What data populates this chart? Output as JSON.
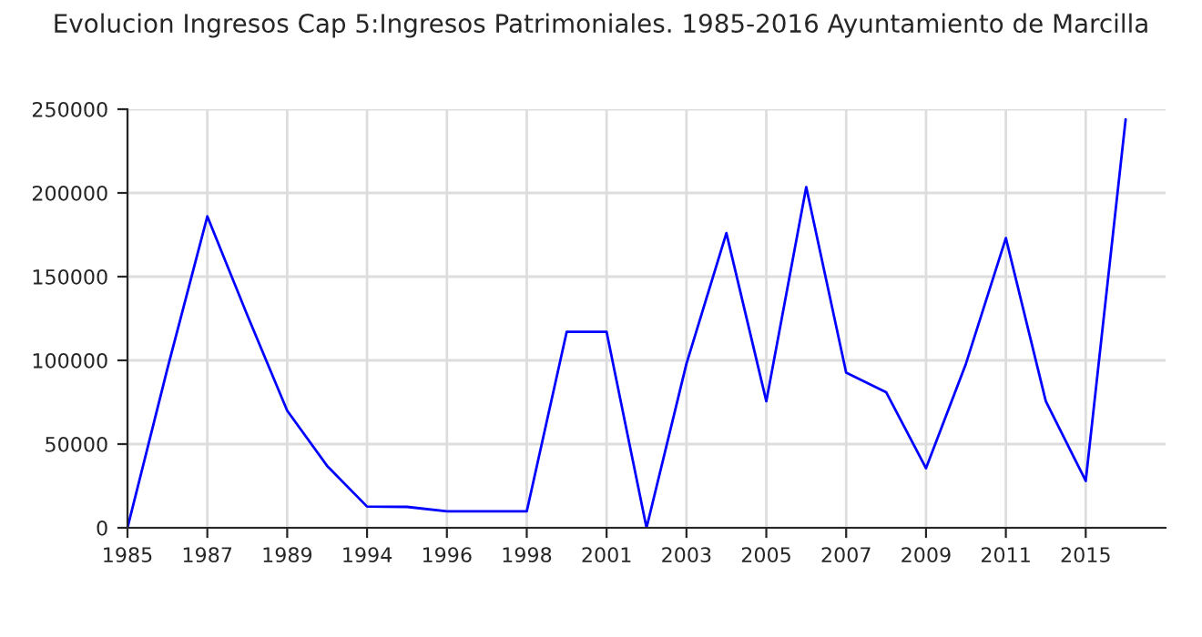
{
  "chart_data": {
    "type": "line",
    "title": "Evolucion Ingresos Cap 5:Ingresos Patrimoniales. 1985-2016 Ayuntamiento de Marcilla",
    "categories": [
      "1985",
      null,
      "1987",
      null,
      "1989",
      null,
      "1994",
      null,
      "1996",
      null,
      "1998",
      null,
      "2001",
      null,
      "2003",
      null,
      "2005",
      null,
      "2007",
      null,
      "2009",
      null,
      "2011",
      null,
      "2015",
      null
    ],
    "series": [
      {
        "color": "#0000ff",
        "values": [
          0,
          95000,
          186000,
          127000,
          70000,
          37000,
          12700,
          12500,
          9800,
          9800,
          9800,
          117000,
          117000,
          0,
          98000,
          176000,
          75600,
          203500,
          92700,
          81000,
          35600,
          98000,
          173000,
          75600,
          28000,
          244000
        ]
      }
    ],
    "ylim": [
      0,
      250000
    ],
    "yticks": [
      0,
      50000,
      100000,
      150000,
      200000,
      250000
    ],
    "grid": true,
    "legend": false,
    "marker": "none",
    "line_style": "solid"
  }
}
